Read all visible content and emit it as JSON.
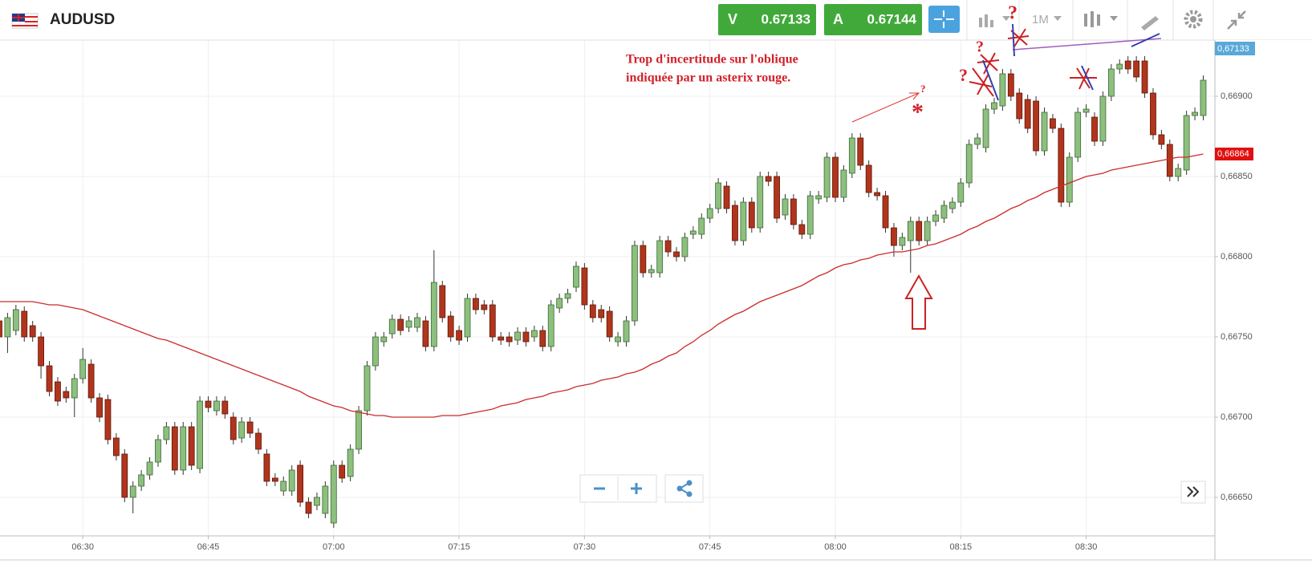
{
  "header": {
    "symbol": "AUDUSD",
    "bid_label": "V",
    "bid": "0.67133",
    "ask_label": "A",
    "ask": "0.67144",
    "timeframe": "1M"
  },
  "price_tag": "0,67133",
  "annotations": [
    "Trop d'incertitude sur l'oblique",
    "indiquée par un asterix rouge.",
    "?",
    "?",
    "?",
    "?",
    "*"
  ],
  "chart_data": {
    "type": "candlestick",
    "categories": [
      null,
      null,
      null,
      null,
      null,
      null,
      null,
      null,
      null,
      null,
      "06:30",
      null,
      null,
      null,
      null,
      null,
      null,
      null,
      null,
      null,
      null,
      null,
      null,
      null,
      null,
      "06:45",
      null,
      null,
      null,
      null,
      null,
      null,
      null,
      null,
      null,
      null,
      null,
      null,
      null,
      null,
      "07:00",
      null,
      null,
      null,
      null,
      null,
      null,
      null,
      null,
      null,
      null,
      null,
      null,
      null,
      null,
      "07:15",
      null,
      null,
      null,
      null,
      null,
      null,
      null,
      null,
      null,
      null,
      null,
      null,
      null,
      null,
      "07:30",
      null,
      null,
      null,
      null,
      null,
      null,
      null,
      null,
      null,
      null,
      null,
      null,
      null,
      null,
      "07:45",
      null,
      null,
      null,
      null,
      null,
      null,
      null,
      null,
      null,
      null,
      null,
      null,
      null,
      null,
      "08:00",
      null,
      null,
      null,
      null,
      null,
      null,
      null,
      null,
      null,
      null,
      null,
      null,
      null,
      null,
      "08:15",
      null,
      null,
      null,
      null,
      null,
      null,
      null,
      null,
      null,
      null,
      null,
      null,
      null,
      null,
      "08:30",
      null,
      null,
      null,
      null,
      null,
      null,
      null,
      null,
      null,
      null,
      null,
      null,
      null,
      null
    ],
    "open": [
      0.6676,
      0.6675,
      0.66754,
      0.66766,
      0.66757,
      0.6675,
      0.66732,
      0.66722,
      0.66716,
      0.66712,
      0.66724,
      0.66733,
      0.66712,
      0.66711,
      0.66687,
      0.66677,
      0.6665,
      0.66657,
      0.66664,
      0.66672,
      0.66686,
      0.66694,
      0.66667,
      0.66694,
      0.66668,
      0.6671,
      0.66704,
      0.6671,
      0.667,
      0.66687,
      0.66697,
      0.6669,
      0.66677,
      0.66662,
      0.66654,
      0.66654,
      0.6667,
      0.66647,
      0.66645,
      0.6664,
      0.66634,
      0.6667,
      0.66663,
      0.6668,
      0.66704,
      0.66732,
      0.66747,
      0.66752,
      0.66761,
      0.66756,
      0.66756,
      0.6676,
      0.66744,
      0.66782,
      0.66763,
      0.66754,
      0.6675,
      0.66774,
      0.6677,
      0.6677,
      0.6675,
      0.6675,
      0.66748,
      0.66753,
      0.6675,
      0.66754,
      0.66744,
      0.66768,
      0.66774,
      0.66781,
      0.66793,
      0.6677,
      0.66767,
      0.66766,
      0.66747,
      0.66747,
      0.6676,
      0.66807,
      0.6679,
      0.6679,
      0.6681,
      0.66803,
      0.668,
      0.66814,
      0.66814,
      0.66824,
      0.6683,
      0.66844,
      0.66832,
      0.6681,
      0.66834,
      0.66818,
      0.6685,
      0.6685,
      0.66826,
      0.66836,
      0.6682,
      0.66814,
      0.66836,
      0.66837,
      0.66862,
      0.66837,
      0.66852,
      0.66874,
      0.66857,
      0.6684,
      0.66838,
      0.66818,
      0.66807,
      0.6681,
      0.66822,
      0.6681,
      0.66822,
      0.66824,
      0.6683,
      0.66834,
      0.66846,
      0.6687,
      0.66868,
      0.66892,
      0.66894,
      0.66914,
      0.66902,
      0.66898,
      0.66897,
      0.66866,
      0.66886,
      0.6688,
      0.66834,
      0.66862,
      0.6689,
      0.66887,
      0.66872,
      0.669,
      0.66917,
      0.66922,
      0.66922,
      0.66922,
      0.66902,
      0.66876,
      0.6687,
      0.6685,
      0.66854,
      0.66888,
      0.66888
    ],
    "high": [
      0.66763,
      0.66765,
      0.6677,
      0.66769,
      0.6676,
      0.66753,
      0.66735,
      0.66725,
      0.66719,
      0.66727,
      0.66743,
      0.66736,
      0.66715,
      0.66714,
      0.6669,
      0.6668,
      0.6666,
      0.66667,
      0.66675,
      0.66689,
      0.66697,
      0.66697,
      0.66697,
      0.66697,
      0.66713,
      0.66713,
      0.66713,
      0.66713,
      0.66703,
      0.667,
      0.667,
      0.66693,
      0.6668,
      0.66665,
      0.66663,
      0.6667,
      0.66673,
      0.6665,
      0.66653,
      0.6666,
      0.66673,
      0.66673,
      0.66683,
      0.66707,
      0.66735,
      0.66753,
      0.66753,
      0.66764,
      0.66764,
      0.66763,
      0.66765,
      0.66763,
      0.66804,
      0.66785,
      0.66766,
      0.66757,
      0.66777,
      0.66777,
      0.66773,
      0.66773,
      0.66753,
      0.66753,
      0.66756,
      0.66756,
      0.66757,
      0.66757,
      0.66773,
      0.66777,
      0.6678,
      0.66797,
      0.66796,
      0.66773,
      0.6677,
      0.66769,
      0.66753,
      0.66763,
      0.6681,
      0.6681,
      0.66795,
      0.66813,
      0.66813,
      0.66806,
      0.66815,
      0.66819,
      0.66827,
      0.66833,
      0.66849,
      0.66847,
      0.66835,
      0.66837,
      0.66837,
      0.66853,
      0.66853,
      0.66853,
      0.66839,
      0.66839,
      0.66823,
      0.66841,
      0.66841,
      0.66865,
      0.66865,
      0.66857,
      0.66877,
      0.66877,
      0.6686,
      0.66843,
      0.66841,
      0.66821,
      0.66815,
      0.66825,
      0.66825,
      0.66825,
      0.66829,
      0.66835,
      0.66837,
      0.66849,
      0.66873,
      0.66877,
      0.66895,
      0.66899,
      0.66917,
      0.66917,
      0.66905,
      0.66901,
      0.669,
      0.66893,
      0.66889,
      0.66883,
      0.66865,
      0.66893,
      0.66895,
      0.6689,
      0.66903,
      0.6692,
      0.66923,
      0.66925,
      0.66925,
      0.66925,
      0.66905,
      0.66879,
      0.66873,
      0.66858,
      0.66891,
      0.66893,
      0.66913
    ],
    "low": [
      0.66747,
      0.6674,
      0.66751,
      0.66747,
      0.66747,
      0.66724,
      0.66713,
      0.66707,
      0.66709,
      0.667,
      0.66721,
      0.66709,
      0.66697,
      0.66683,
      0.66673,
      0.66647,
      0.6664,
      0.66654,
      0.66661,
      0.66669,
      0.66683,
      0.66664,
      0.66664,
      0.66667,
      0.66665,
      0.66703,
      0.66701,
      0.66699,
      0.66683,
      0.66684,
      0.66687,
      0.66677,
      0.66657,
      0.66657,
      0.66651,
      0.66651,
      0.66644,
      0.66637,
      0.66642,
      0.66637,
      0.66631,
      0.66659,
      0.6666,
      0.66677,
      0.66701,
      0.66729,
      0.66744,
      0.66749,
      0.66751,
      0.66753,
      0.66753,
      0.66741,
      0.66741,
      0.66759,
      0.66747,
      0.66745,
      0.66747,
      0.66764,
      0.66764,
      0.66747,
      0.66745,
      0.66744,
      0.66745,
      0.66744,
      0.66747,
      0.66741,
      0.66741,
      0.66765,
      0.66771,
      0.66778,
      0.66767,
      0.66759,
      0.66759,
      0.66747,
      0.66744,
      0.66744,
      0.66757,
      0.66787,
      0.66787,
      0.66787,
      0.668,
      0.66797,
      0.66797,
      0.66811,
      0.66811,
      0.66821,
      0.66827,
      0.66827,
      0.66807,
      0.66807,
      0.66815,
      0.66815,
      0.66844,
      0.66821,
      0.66823,
      0.66817,
      0.66811,
      0.66811,
      0.66833,
      0.66834,
      0.66834,
      0.66834,
      0.66849,
      0.66854,
      0.66837,
      0.66835,
      0.66815,
      0.668,
      0.66804,
      0.6679,
      0.66807,
      0.66807,
      0.66819,
      0.66821,
      0.66827,
      0.66831,
      0.66843,
      0.66867,
      0.66865,
      0.66889,
      0.66891,
      0.66897,
      0.66883,
      0.66877,
      0.66863,
      0.66863,
      0.66877,
      0.66831,
      0.66831,
      0.66859,
      0.66887,
      0.66869,
      0.66869,
      0.66897,
      0.66914,
      0.66914,
      0.66909,
      0.66899,
      0.66873,
      0.66867,
      0.66847,
      0.66847,
      0.66851,
      0.66885,
      0.66885
    ],
    "close": [
      0.6675,
      0.66762,
      0.66767,
      0.6675,
      0.6675,
      0.66732,
      0.66716,
      0.6671,
      0.66712,
      0.66724,
      0.66736,
      0.66712,
      0.667,
      0.66686,
      0.66676,
      0.6665,
      0.66657,
      0.66664,
      0.66672,
      0.66686,
      0.66694,
      0.66667,
      0.66694,
      0.6667,
      0.6671,
      0.66706,
      0.6671,
      0.66702,
      0.66686,
      0.66697,
      0.6669,
      0.6668,
      0.6666,
      0.6666,
      0.6666,
      0.66667,
      0.66647,
      0.6664,
      0.6665,
      0.66657,
      0.6667,
      0.66662,
      0.6668,
      0.66704,
      0.66732,
      0.6675,
      0.6675,
      0.66761,
      0.66754,
      0.6676,
      0.66762,
      0.66744,
      0.66784,
      0.66762,
      0.6675,
      0.66748,
      0.66774,
      0.66767,
      0.66767,
      0.6675,
      0.66748,
      0.66747,
      0.66753,
      0.66747,
      0.66754,
      0.66744,
      0.6677,
      0.66774,
      0.66777,
      0.66794,
      0.6677,
      0.66762,
      0.66762,
      0.6675,
      0.6675,
      0.6676,
      0.66807,
      0.6679,
      0.66792,
      0.6681,
      0.66803,
      0.668,
      0.66812,
      0.66816,
      0.66824,
      0.6683,
      0.66846,
      0.6683,
      0.6681,
      0.66834,
      0.66818,
      0.6685,
      0.66847,
      0.66824,
      0.66836,
      0.6682,
      0.66814,
      0.66838,
      0.66838,
      0.66862,
      0.66837,
      0.66854,
      0.66874,
      0.66857,
      0.6684,
      0.66838,
      0.66818,
      0.66807,
      0.66812,
      0.66822,
      0.6681,
      0.66822,
      0.66826,
      0.66832,
      0.66834,
      0.66846,
      0.6687,
      0.66874,
      0.66892,
      0.66896,
      0.66914,
      0.669,
      0.66886,
      0.6688,
      0.66866,
      0.6689,
      0.6688,
      0.66834,
      0.66862,
      0.6689,
      0.66892,
      0.66872,
      0.669,
      0.66917,
      0.6692,
      0.66917,
      0.66912,
      0.66902,
      0.66876,
      0.6687,
      0.6685,
      0.66855,
      0.66888,
      0.6689,
      0.6691
    ],
    "up_color": "#8dbf7e",
    "down_color": "#b0351c",
    "series": [
      {
        "color": "#cc2b2b",
        "values": [
          0.66772,
          0.66772,
          0.66772,
          0.66772,
          0.66772,
          0.66771,
          0.6677,
          0.6677,
          0.66769,
          0.66768,
          0.66767,
          0.66765,
          0.66763,
          0.66761,
          0.66759,
          0.66757,
          0.66755,
          0.66753,
          0.66751,
          0.66749,
          0.66748,
          0.66746,
          0.66744,
          0.66742,
          0.6674,
          0.66738,
          0.66736,
          0.66734,
          0.66732,
          0.6673,
          0.66728,
          0.66726,
          0.66724,
          0.66722,
          0.6672,
          0.66718,
          0.66716,
          0.66713,
          0.66711,
          0.66709,
          0.66707,
          0.66706,
          0.66704,
          0.66703,
          0.66702,
          0.66701,
          0.66701,
          0.667,
          0.667,
          0.667,
          0.667,
          0.667,
          0.667,
          0.66701,
          0.66701,
          0.66701,
          0.66702,
          0.66703,
          0.66704,
          0.66705,
          0.66707,
          0.66708,
          0.66709,
          0.66711,
          0.66712,
          0.66713,
          0.66715,
          0.66716,
          0.66717,
          0.66719,
          0.6672,
          0.66721,
          0.66723,
          0.66724,
          0.66725,
          0.66727,
          0.66728,
          0.6673,
          0.66733,
          0.66735,
          0.66738,
          0.6674,
          0.66744,
          0.66747,
          0.66751,
          0.66754,
          0.66758,
          0.66761,
          0.66764,
          0.66766,
          0.66769,
          0.66772,
          0.66774,
          0.66776,
          0.66778,
          0.6678,
          0.66782,
          0.66785,
          0.66788,
          0.6679,
          0.66793,
          0.66795,
          0.66796,
          0.66798,
          0.66799,
          0.66801,
          0.66802,
          0.66803,
          0.66803,
          0.66804,
          0.66805,
          0.66807,
          0.66808,
          0.6681,
          0.66812,
          0.66814,
          0.66817,
          0.66819,
          0.66822,
          0.66824,
          0.66827,
          0.6683,
          0.66832,
          0.66835,
          0.66837,
          0.6684,
          0.66842,
          0.66844,
          0.66846,
          0.66848,
          0.6685,
          0.66851,
          0.66852,
          0.66854,
          0.66855,
          0.66856,
          0.66857,
          0.66858,
          0.66859,
          0.6686,
          0.66861,
          0.66862,
          0.66862,
          0.66863,
          0.66864
        ]
      }
    ],
    "last_tag": {
      "value": 0.66864,
      "label": "0,66864"
    },
    "ylim": [
      0.66626,
      0.66935
    ],
    "yticks": [
      {
        "value": 0.6665,
        "label": "0,66650"
      },
      {
        "value": 0.667,
        "label": "0,66700"
      },
      {
        "value": 0.6675,
        "label": "0,66750"
      },
      {
        "value": 0.668,
        "label": "0,66800"
      },
      {
        "value": 0.6685,
        "label": "0,66850"
      },
      {
        "value": 0.669,
        "label": "0,66900"
      }
    ],
    "grid": true
  }
}
